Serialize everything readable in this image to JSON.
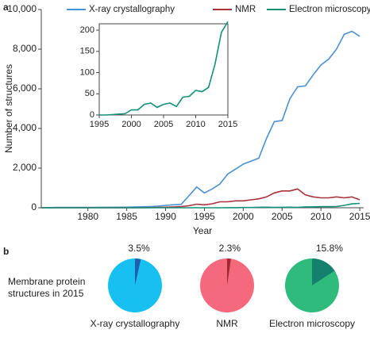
{
  "chart_data": [
    {
      "type": "line",
      "panel_label": "a",
      "xlabel": "Year",
      "ylabel": "Number of structures",
      "x": [
        1974,
        1975,
        1976,
        1977,
        1978,
        1979,
        1980,
        1981,
        1982,
        1983,
        1984,
        1985,
        1986,
        1987,
        1988,
        1989,
        1990,
        1991,
        1992,
        1993,
        1994,
        1995,
        1996,
        1997,
        1998,
        1999,
        2000,
        2001,
        2002,
        2003,
        2004,
        2005,
        2006,
        2007,
        2008,
        2009,
        2010,
        2011,
        2012,
        2013,
        2014,
        2015
      ],
      "series": [
        {
          "name": "X-ray crystallography",
          "color": "#4a90d2",
          "values": [
            10,
            10,
            15,
            15,
            15,
            20,
            20,
            20,
            25,
            25,
            30,
            30,
            40,
            50,
            60,
            80,
            120,
            150,
            170,
            600,
            1050,
            750,
            950,
            1200,
            1700,
            1950,
            2200,
            2350,
            2500,
            3500,
            4350,
            4400,
            5500,
            6100,
            6150,
            6700,
            7200,
            7500,
            8000,
            8750,
            8900,
            8650
          ]
        },
        {
          "name": "NMR",
          "color": "#a8333a",
          "values": [
            0,
            0,
            0,
            0,
            0,
            0,
            0,
            0,
            0,
            0,
            0,
            0,
            0,
            0,
            10,
            20,
            30,
            40,
            60,
            100,
            180,
            150,
            200,
            300,
            300,
            350,
            350,
            400,
            450,
            550,
            750,
            850,
            850,
            950,
            650,
            550,
            500,
            500,
            550,
            500,
            550,
            400
          ]
        },
        {
          "name": "Electron microscopy",
          "color": "#13907a",
          "values": [
            0,
            0,
            0,
            0,
            0,
            0,
            0,
            0,
            0,
            0,
            0,
            0,
            0,
            0,
            0,
            0,
            0,
            0,
            0,
            0,
            0,
            0,
            0,
            1,
            2,
            3,
            12,
            12,
            25,
            28,
            18,
            25,
            28,
            20,
            42,
            44,
            58,
            55,
            65,
            120,
            195,
            220
          ]
        }
      ],
      "xlim": [
        1974,
        2015.5
      ],
      "xticks": [
        1980,
        1985,
        1990,
        1995,
        2000,
        2005,
        2010,
        2015
      ],
      "ylim": [
        0,
        10000
      ],
      "yticks": [
        0,
        {
          "value": 2000,
          "label": "2,000"
        },
        {
          "value": 4000,
          "label": "4,000"
        },
        {
          "value": 6000,
          "label": "6,000"
        },
        {
          "value": 8000,
          "label": "8,000"
        },
        {
          "value": 10000,
          "label": "10,000"
        }
      ]
    },
    {
      "type": "line",
      "x": [
        1995,
        1996,
        1997,
        1998,
        1999,
        2000,
        2001,
        2002,
        2003,
        2004,
        2005,
        2006,
        2007,
        2008,
        2009,
        2010,
        2011,
        2012,
        2013,
        2014,
        2015
      ],
      "series": [
        {
          "color": "#13907a",
          "values": [
            0,
            0,
            1,
            2,
            3,
            12,
            12,
            25,
            28,
            18,
            25,
            28,
            20,
            42,
            44,
            58,
            55,
            65,
            120,
            195,
            220
          ]
        }
      ],
      "xlim": [
        1995,
        2015
      ],
      "xticks": [
        1995,
        2000,
        2005,
        2010,
        2015
      ],
      "ylim": [
        0,
        215
      ],
      "yticks": [
        0,
        50,
        100,
        150,
        200
      ]
    },
    {
      "type": "pie",
      "panel_label": "b",
      "row_label": "Membrane protein structures in 2015",
      "title": "X-ray crystallography",
      "values": [
        3.5
      ],
      "value_labels": [
        "3.5%"
      ],
      "color": "#1d5fa8",
      "background": "#17c0f0"
    },
    {
      "type": "pie",
      "title": "NMR",
      "values": [
        2.3
      ],
      "value_labels": [
        "2.3%"
      ],
      "color": "#9b2a33",
      "background": "#f46a7c"
    },
    {
      "type": "pie",
      "title": "Electron microscopy",
      "values": [
        15.8
      ],
      "value_labels": [
        "15.8%"
      ],
      "color": "#16806e",
      "background": "#2fbb7c"
    }
  ]
}
